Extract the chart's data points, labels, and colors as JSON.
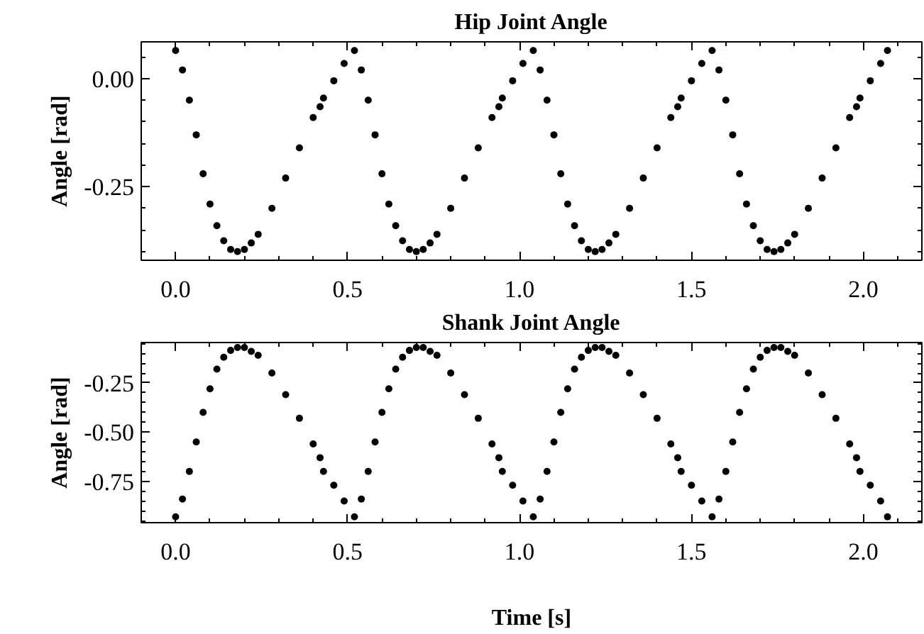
{
  "chart_data": [
    {
      "type": "scatter",
      "title": "Hip Joint Angle",
      "ylabel": "Angle [rad]",
      "marker": "circle",
      "grid": false,
      "legend": false,
      "xlim": [
        -0.1,
        2.17
      ],
      "xticks": [
        {
          "value": 0.0,
          "label": "0.0"
        },
        {
          "value": 0.5,
          "label": "0.5"
        },
        {
          "value": 1.0,
          "label": "1.0"
        },
        {
          "value": 1.5,
          "label": "1.5"
        },
        {
          "value": 2.0,
          "label": "2.0"
        }
      ],
      "ylim": [
        -0.42,
        0.085
      ],
      "yticks": [
        {
          "value": 0.0,
          "label": "0.00"
        },
        {
          "value": -0.25,
          "label": "-0.25"
        }
      ],
      "x": [
        0,
        0.02,
        0.04,
        0.06,
        0.08,
        0.1,
        0.12,
        0.14,
        0.16,
        0.18,
        0.2,
        0.22,
        0.24,
        0.28,
        0.32,
        0.36,
        0.4,
        0.42,
        0.43,
        0.46,
        0.49,
        0.52,
        0.54,
        0.56,
        0.58,
        0.6,
        0.62,
        0.64,
        0.66,
        0.68,
        0.7,
        0.72,
        0.74,
        0.76,
        0.8,
        0.84,
        0.88,
        0.92,
        0.94,
        0.95,
        0.98,
        1.01,
        1.04,
        1.06,
        1.08,
        1.1,
        1.12,
        1.14,
        1.16,
        1.18,
        1.2,
        1.22,
        1.24,
        1.26,
        1.28,
        1.32,
        1.36,
        1.4,
        1.44,
        1.46,
        1.47,
        1.5,
        1.53,
        1.56,
        1.58,
        1.6,
        1.62,
        1.64,
        1.66,
        1.68,
        1.7,
        1.72,
        1.74,
        1.76,
        1.78,
        1.8,
        1.84,
        1.88,
        1.92,
        1.96,
        1.98,
        1.99,
        2.02,
        2.05,
        2.07
      ],
      "series": [
        {
          "color": "#000000",
          "values": [
            0.065,
            0.02,
            -0.05,
            -0.13,
            -0.22,
            -0.29,
            -0.34,
            -0.375,
            -0.395,
            -0.4,
            -0.395,
            -0.38,
            -0.36,
            -0.3,
            -0.23,
            -0.16,
            -0.09,
            -0.065,
            -0.045,
            -0.005,
            0.035,
            0.065,
            0.02,
            -0.05,
            -0.13,
            -0.22,
            -0.29,
            -0.34,
            -0.375,
            -0.395,
            -0.4,
            -0.395,
            -0.38,
            -0.36,
            -0.3,
            -0.23,
            -0.16,
            -0.09,
            -0.065,
            -0.045,
            -0.005,
            0.035,
            0.065,
            0.02,
            -0.05,
            -0.13,
            -0.22,
            -0.29,
            -0.34,
            -0.375,
            -0.395,
            -0.4,
            -0.395,
            -0.38,
            -0.36,
            -0.3,
            -0.23,
            -0.16,
            -0.09,
            -0.065,
            -0.045,
            -0.005,
            0.035,
            0.065,
            0.02,
            -0.05,
            -0.13,
            -0.22,
            -0.29,
            -0.34,
            -0.375,
            -0.395,
            -0.4,
            -0.395,
            -0.38,
            -0.36,
            -0.3,
            -0.23,
            -0.16,
            -0.09,
            -0.065,
            -0.045,
            -0.005,
            0.035,
            0.065
          ]
        }
      ]
    },
    {
      "type": "scatter",
      "title": "Shank Joint Angle",
      "ylabel": "Angle [rad]",
      "xlabel": "Time [s]",
      "marker": "circle",
      "grid": false,
      "legend": false,
      "xlim": [
        -0.1,
        2.17
      ],
      "xticks": [
        {
          "value": 0.0,
          "label": "0.0"
        },
        {
          "value": 0.5,
          "label": "0.5"
        },
        {
          "value": 1.0,
          "label": "1.0"
        },
        {
          "value": 1.5,
          "label": "1.5"
        },
        {
          "value": 2.0,
          "label": "2.0"
        }
      ],
      "ylim": [
        -0.96,
        -0.045
      ],
      "yticks": [
        {
          "value": -0.25,
          "label": "-0.25"
        },
        {
          "value": -0.5,
          "label": "-0.50"
        },
        {
          "value": -0.75,
          "label": "-0.75"
        }
      ],
      "x": [
        0,
        0.02,
        0.04,
        0.06,
        0.08,
        0.1,
        0.12,
        0.14,
        0.16,
        0.18,
        0.2,
        0.22,
        0.24,
        0.28,
        0.32,
        0.36,
        0.4,
        0.42,
        0.43,
        0.46,
        0.49,
        0.52,
        0.54,
        0.56,
        0.58,
        0.6,
        0.62,
        0.64,
        0.66,
        0.68,
        0.7,
        0.72,
        0.74,
        0.76,
        0.8,
        0.84,
        0.88,
        0.92,
        0.94,
        0.95,
        0.98,
        1.01,
        1.04,
        1.06,
        1.08,
        1.1,
        1.12,
        1.14,
        1.16,
        1.18,
        1.2,
        1.22,
        1.24,
        1.26,
        1.28,
        1.32,
        1.36,
        1.4,
        1.44,
        1.46,
        1.47,
        1.5,
        1.53,
        1.56,
        1.58,
        1.6,
        1.62,
        1.64,
        1.66,
        1.68,
        1.7,
        1.72,
        1.74,
        1.76,
        1.78,
        1.8,
        1.84,
        1.88,
        1.92,
        1.96,
        1.98,
        1.99,
        2.02,
        2.05,
        2.07
      ],
      "series": [
        {
          "color": "#000000",
          "values": [
            -0.93,
            -0.84,
            -0.7,
            -0.55,
            -0.4,
            -0.28,
            -0.18,
            -0.12,
            -0.085,
            -0.07,
            -0.07,
            -0.09,
            -0.11,
            -0.2,
            -0.31,
            -0.43,
            -0.56,
            -0.63,
            -0.7,
            -0.77,
            -0.85,
            -0.93,
            -0.84,
            -0.7,
            -0.55,
            -0.4,
            -0.28,
            -0.18,
            -0.12,
            -0.085,
            -0.07,
            -0.07,
            -0.09,
            -0.11,
            -0.2,
            -0.31,
            -0.43,
            -0.56,
            -0.63,
            -0.7,
            -0.77,
            -0.85,
            -0.93,
            -0.84,
            -0.7,
            -0.55,
            -0.4,
            -0.28,
            -0.18,
            -0.12,
            -0.085,
            -0.07,
            -0.07,
            -0.09,
            -0.11,
            -0.2,
            -0.31,
            -0.43,
            -0.56,
            -0.63,
            -0.7,
            -0.77,
            -0.85,
            -0.93,
            -0.84,
            -0.7,
            -0.55,
            -0.4,
            -0.28,
            -0.18,
            -0.12,
            -0.085,
            -0.07,
            -0.07,
            -0.09,
            -0.11,
            -0.2,
            -0.31,
            -0.43,
            -0.56,
            -0.63,
            -0.7,
            -0.77,
            -0.85,
            -0.93
          ]
        }
      ]
    }
  ]
}
